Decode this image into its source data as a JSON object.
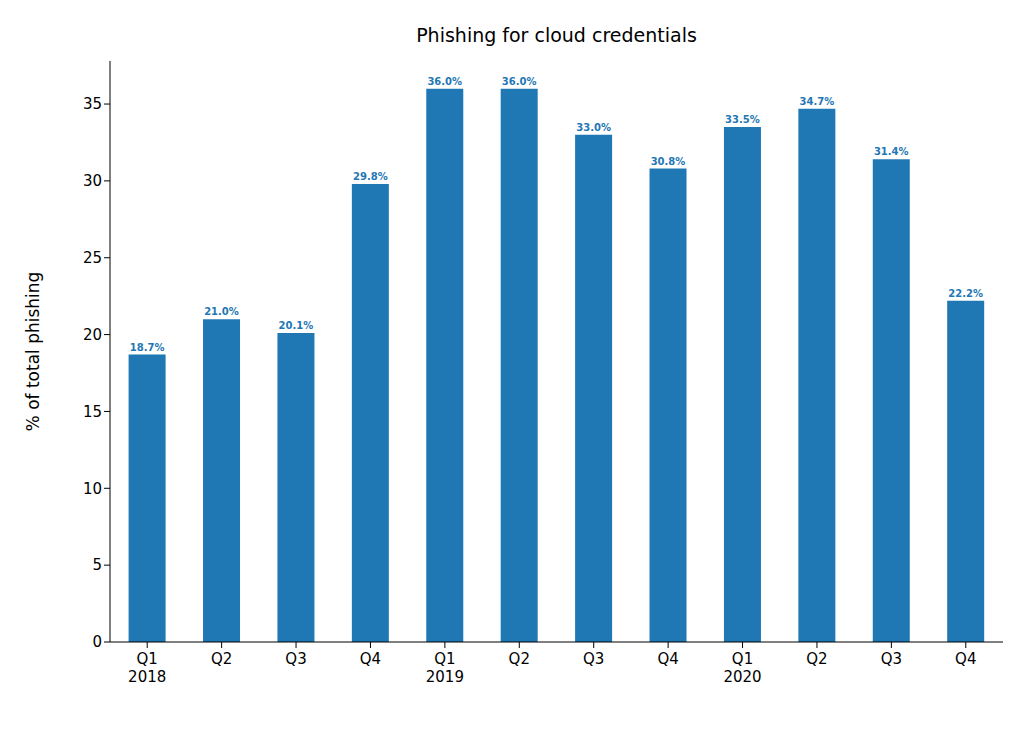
{
  "chart_data": {
    "type": "bar",
    "title": "Phishing for cloud credentials",
    "y_label": "% of total phishing",
    "categories": [
      "Q1\n2018",
      "Q2",
      "Q3",
      "Q4",
      "Q1\n2019",
      "Q2",
      "Q3",
      "Q4",
      "Q1\n2020",
      "Q2",
      "Q3",
      "Q4"
    ],
    "values": [
      18.7,
      21.0,
      20.1,
      29.8,
      36.0,
      36.0,
      33.0,
      30.8,
      33.5,
      34.7,
      31.4,
      22.2
    ],
    "value_labels": [
      "18.7%",
      "21.0%",
      "20.1%",
      "29.8%",
      "36.0%",
      "36.0%",
      "33.0%",
      "30.8%",
      "33.5%",
      "34.7%",
      "31.4%",
      "22.2%"
    ],
    "color": "#1f77b4",
    "ylim": [
      0,
      37.8
    ],
    "yticks": [
      0,
      5,
      10,
      15,
      20,
      25,
      30,
      35
    ],
    "grid": false,
    "data_labels": true
  }
}
